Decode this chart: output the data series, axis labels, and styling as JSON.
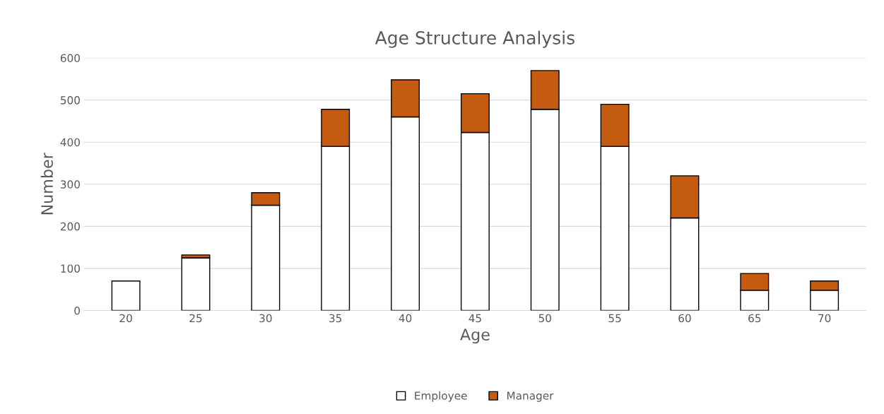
{
  "chart_data": {
    "type": "bar",
    "title": "Age Structure Analysis",
    "xlabel": "Age",
    "ylabel": "Number",
    "stacked": true,
    "categories": [
      "20",
      "25",
      "30",
      "35",
      "40",
      "45",
      "50",
      "55",
      "60",
      "65",
      "70"
    ],
    "series": [
      {
        "name": "Employee",
        "color": "#ffffff",
        "values": [
          70,
          125,
          250,
          390,
          460,
          423,
          478,
          390,
          220,
          48,
          48
        ]
      },
      {
        "name": "Manager",
        "color": "#c55a11",
        "values": [
          null,
          7,
          30,
          88,
          88,
          92,
          92,
          100,
          100,
          40,
          22
        ]
      }
    ],
    "ylim": [
      0,
      600
    ],
    "yticks": [
      0,
      100,
      200,
      300,
      400,
      500,
      600
    ],
    "grid": "y",
    "legend": "bottom"
  }
}
